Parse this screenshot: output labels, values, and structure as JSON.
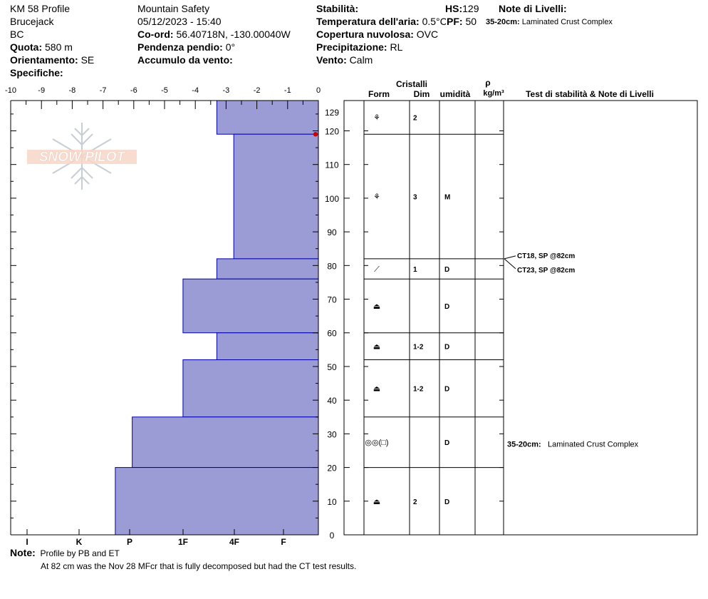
{
  "header": {
    "col1": {
      "title": "KM 58 Profile",
      "location": "Brucejack",
      "region": "BC",
      "elevation_label": "Quota:",
      "elevation": "580 m",
      "aspect_label": "Orientamento:",
      "aspect": "SE",
      "specifics_label": "Specifiche:"
    },
    "col2": {
      "org": "Mountain Safety",
      "datetime": "05/12/2023 - 15:40",
      "coord_label": "Co-ord:",
      "coord": "56.40718N, -130.00040W",
      "slope_label": "Pendenza pendio:",
      "slope": "0°",
      "wind_load_label": "Accumulo da vento:"
    },
    "col3": {
      "stability_label": "Stabilità:",
      "air_temp_label": "Temperatura dell'aria:",
      "air_temp": "0.5°C",
      "cloud_label": "Copertura nuvolosa:",
      "cloud": "OVC",
      "precip_label": "Precipitazione:",
      "precip": "RL",
      "wind_label": "Vento:",
      "wind": "Calm"
    },
    "col4": {
      "hs_label": "HS:",
      "hs": "129",
      "pf_label": "PF:",
      "pf": "50",
      "layer_notes_label": "Note di Livelli:",
      "layer_note_range": "35-20cm:",
      "layer_note_text": "Laminated Crust Complex"
    }
  },
  "logo_text": "SNOW PILOT",
  "chart_data": {
    "type": "bar",
    "temp_axis": {
      "ticks": [
        -10,
        -9,
        -8,
        -7,
        -6,
        -5,
        -4,
        -3,
        -2,
        -1,
        0
      ],
      "range": [
        -10,
        0
      ]
    },
    "height_axis": {
      "ticks": [
        0,
        10,
        20,
        30,
        40,
        50,
        60,
        70,
        80,
        90,
        100,
        110,
        120
      ],
      "top_label": "129",
      "range": [
        0,
        129
      ]
    },
    "hardness_axis": {
      "labels": [
        "I",
        "K",
        "P",
        "1F",
        "4F",
        "F"
      ]
    },
    "bar_color": "#9b9bd6",
    "bar_edge_color": "#0000aa",
    "air_temp_marker": {
      "height": 119,
      "temp": 0,
      "color": "#cc0000"
    },
    "layers": [
      {
        "top": 129,
        "bottom": 119,
        "hardness_temp": -3.3,
        "form": "⚘",
        "size": "2",
        "moisture": ""
      },
      {
        "top": 119,
        "bottom": 82,
        "hardness_temp": -2.75,
        "form": "⚘",
        "size": "3",
        "moisture": "M"
      },
      {
        "top": 82,
        "bottom": 76,
        "hardness_temp": -3.3,
        "form": "⟋",
        "size": "1",
        "moisture": "D"
      },
      {
        "top": 76,
        "bottom": 60,
        "hardness_temp": -4.4,
        "form": "⏏",
        "size": "",
        "moisture": "D"
      },
      {
        "top": 60,
        "bottom": 52,
        "hardness_temp": -3.3,
        "form": "⏏",
        "size": "1-2",
        "moisture": "D"
      },
      {
        "top": 52,
        "bottom": 35,
        "hardness_temp": -4.4,
        "form": "⏏",
        "size": "1-2",
        "moisture": "D"
      },
      {
        "top": 35,
        "bottom": 20,
        "hardness_temp": -6.05,
        "form": "◎◎(□)",
        "size": "",
        "moisture": "D"
      },
      {
        "top": 20,
        "bottom": 0,
        "hardness_temp": -6.6,
        "form": "⏏",
        "size": "2",
        "moisture": "D"
      }
    ],
    "form_rows": [
      {
        "top": 129,
        "bottom": 119,
        "form": "⚘",
        "size": "2",
        "moisture": ""
      },
      {
        "top": 119,
        "bottom": 82,
        "form": "⚘",
        "size": "3",
        "moisture": "M"
      },
      {
        "top": 82,
        "bottom": 76,
        "form": "⟋",
        "size": "1",
        "moisture": "D"
      }
    ],
    "tests": [
      {
        "text": "CT18, SP @82cm",
        "height": 82
      },
      {
        "text": "CT23, SP @82cm",
        "height": 82
      }
    ],
    "layer_comment": {
      "range": "35-20cm:",
      "text": "Laminated Crust Complex",
      "height": 27
    }
  },
  "table_headers": {
    "crystals": "Cristalli",
    "form": "Form",
    "size": "Dim",
    "moisture": "umidità",
    "rho": "ρ",
    "density_unit": "kg/m³",
    "tests": "Test di stabilità & Note di Livelli"
  },
  "notes": {
    "label": "Note:",
    "line1": "Profile by PB and ET",
    "line2": "At 82 cm was the Nov 28 MFcr that is fully decomposed but had the CT test results."
  }
}
